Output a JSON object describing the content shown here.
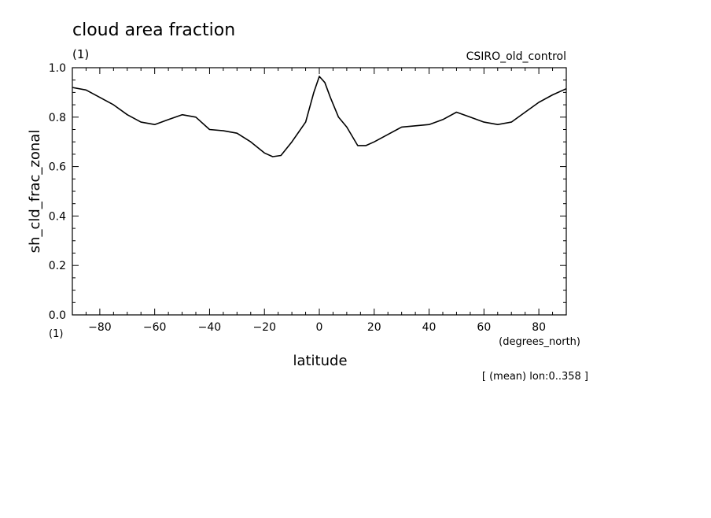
{
  "title": "cloud area fraction",
  "title_units": "(1)",
  "source_label": "CSIRO_old_control",
  "x_units": "(degrees_north)",
  "y_units_bottom": "(1)",
  "footnote": "[ (mean) lon:0..358 ]",
  "chart_data": {
    "type": "line",
    "title": "cloud area fraction",
    "xlabel": "latitude",
    "ylabel": "sh_cld_frac_zonal",
    "xlim": [
      -90,
      90
    ],
    "ylim": [
      0.0,
      1.0
    ],
    "x_ticks": [
      -80,
      -60,
      -40,
      -20,
      0,
      20,
      40,
      60,
      80
    ],
    "x_tick_labels": [
      "−80",
      "−60",
      "−40",
      "−20",
      "0",
      "20",
      "40",
      "60",
      "80"
    ],
    "y_ticks": [
      0.0,
      0.2,
      0.4,
      0.6,
      0.8,
      1.0
    ],
    "y_tick_labels": [
      "0.0",
      "0.2",
      "0.4",
      "0.6",
      "0.8",
      "1.0"
    ],
    "grid": false,
    "line_color": "#000000",
    "x": [
      -90,
      -85,
      -80,
      -75,
      -70,
      -65,
      -60,
      -55,
      -50,
      -45,
      -40,
      -35,
      -30,
      -25,
      -20,
      -17,
      -14,
      -10,
      -5,
      -2,
      0,
      2,
      4,
      7,
      10,
      14,
      17,
      20,
      25,
      30,
      35,
      40,
      45,
      50,
      55,
      60,
      65,
      70,
      75,
      80,
      85,
      90
    ],
    "y": [
      0.92,
      0.91,
      0.88,
      0.85,
      0.81,
      0.78,
      0.77,
      0.79,
      0.81,
      0.8,
      0.75,
      0.745,
      0.735,
      0.7,
      0.655,
      0.64,
      0.645,
      0.7,
      0.78,
      0.9,
      0.965,
      0.94,
      0.88,
      0.8,
      0.76,
      0.685,
      0.685,
      0.7,
      0.73,
      0.76,
      0.765,
      0.77,
      0.79,
      0.82,
      0.8,
      0.78,
      0.77,
      0.78,
      0.82,
      0.86,
      0.89,
      0.915
    ]
  }
}
